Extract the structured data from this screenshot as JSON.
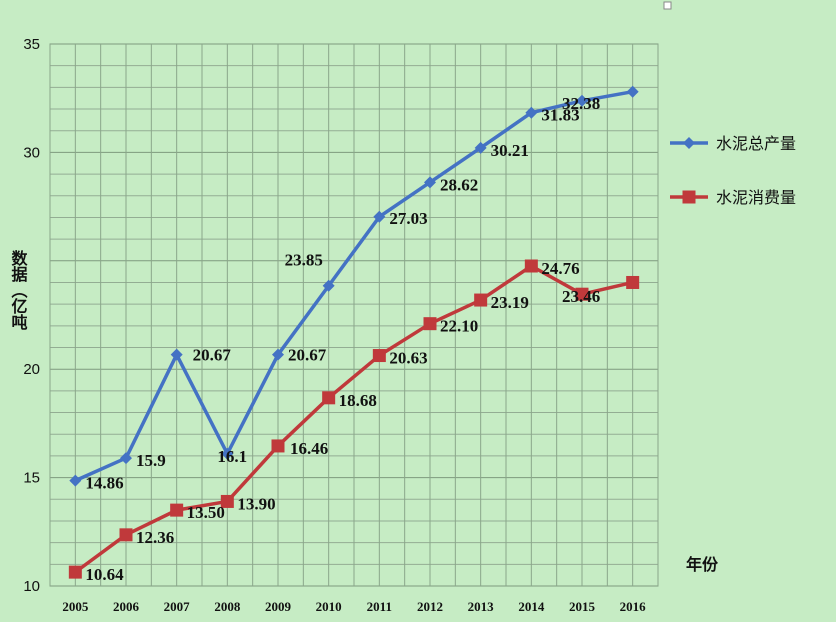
{
  "chart_data": {
    "type": "line",
    "categories": [
      "2005",
      "2006",
      "2007",
      "2008",
      "2009",
      "2010",
      "2011",
      "2012",
      "2013",
      "2014",
      "2015",
      "2016"
    ],
    "ylim": [
      10,
      35
    ],
    "yticks": [
      10,
      15,
      20,
      25,
      30,
      35
    ],
    "ytick_labels": [
      "10",
      "15",
      "20",
      "",
      "30",
      "35"
    ],
    "grid": true,
    "legend_position": "right",
    "ylabel": "数据（亿吨",
    "xlabel": "年份",
    "series": [
      {
        "name": "水泥总产量",
        "color": "#4472c4",
        "marker": "diamond",
        "values": [
          14.86,
          15.9,
          20.67,
          16.1,
          20.67,
          23.85,
          27.03,
          28.62,
          30.21,
          31.83,
          32.38,
          32.8
        ],
        "labels": [
          "14.86",
          "15.9",
          "20.67",
          "16.1",
          "20.67",
          "23.85",
          "27.03",
          "28.62",
          "30.21",
          "31.83",
          "32.38",
          ""
        ]
      },
      {
        "name": "水泥消费量",
        "color": "#c0393b",
        "marker": "square",
        "values": [
          10.64,
          12.36,
          13.5,
          13.9,
          16.46,
          18.68,
          20.63,
          22.1,
          23.19,
          24.76,
          23.46,
          24.0
        ],
        "labels": [
          "10.64",
          "12.36",
          "13.50",
          "13.90",
          "16.46",
          "18.68",
          "20.63",
          "22.10",
          "23.19",
          "24.76",
          "23.46",
          ""
        ]
      }
    ]
  }
}
